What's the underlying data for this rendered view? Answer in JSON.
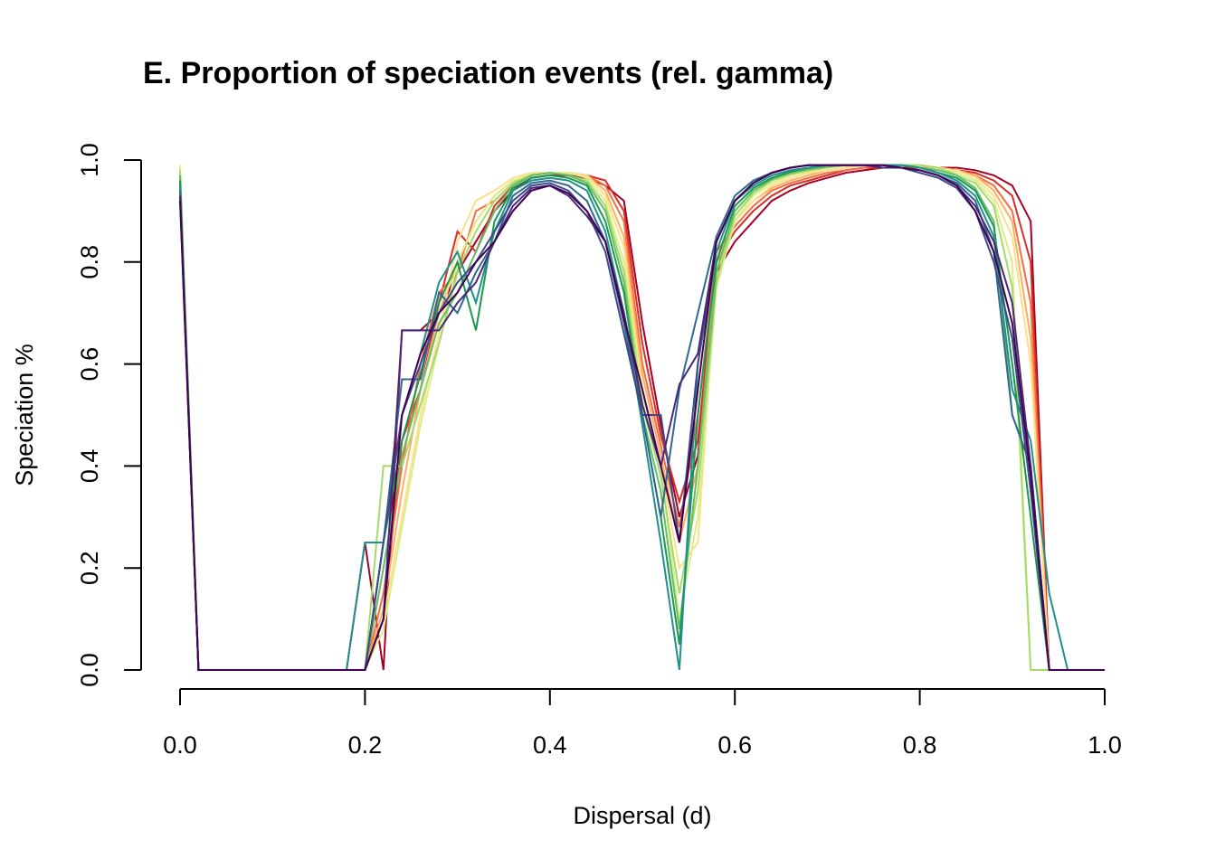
{
  "chart_data": {
    "type": "line",
    "title": "E. Proportion of speciation events (rel. gamma)",
    "xlabel": "Dispersal (d)",
    "ylabel": "Speciation %",
    "xlim": [
      0,
      1
    ],
    "ylim": [
      0,
      1
    ],
    "x_ticks": [
      "0.0",
      "0.2",
      "0.4",
      "0.6",
      "0.8",
      "1.0"
    ],
    "y_ticks": [
      "0.0",
      "0.2",
      "0.4",
      "0.6",
      "0.8",
      "1.0"
    ],
    "grid": false,
    "legend": "none",
    "palette": [
      "#A50026",
      "#D73027",
      "#F46D43",
      "#FDAE61",
      "#FEE08B",
      "#D9EF8B",
      "#A6D96A",
      "#66BD63",
      "#1A9850",
      "#21908C",
      "#31688E",
      "#3E4A89",
      "#482878",
      "#440154"
    ],
    "x": [
      0.0,
      0.02,
      0.04,
      0.06,
      0.08,
      0.1,
      0.12,
      0.14,
      0.16,
      0.18,
      0.2,
      0.22,
      0.24,
      0.26,
      0.28,
      0.3,
      0.32,
      0.34,
      0.36,
      0.38,
      0.4,
      0.42,
      0.44,
      0.46,
      0.48,
      0.5,
      0.52,
      0.54,
      0.56,
      0.58,
      0.6,
      0.62,
      0.64,
      0.66,
      0.68,
      0.7,
      0.72,
      0.74,
      0.76,
      0.78,
      0.8,
      0.82,
      0.84,
      0.86,
      0.88,
      0.9,
      0.92,
      0.94,
      0.96,
      0.98,
      1.0
    ],
    "series": [
      {
        "color": "#A50026",
        "values": [
          0.95,
          0,
          0,
          0,
          0,
          0,
          0,
          0,
          0,
          0,
          0.25,
          0,
          0.666,
          0.666,
          0.7,
          0.78,
          0.84,
          0.9,
          0.94,
          0.965,
          0.97,
          0.97,
          0.965,
          0.95,
          0.92,
          0.68,
          0.48,
          0.3,
          0.42,
          0.78,
          0.84,
          0.88,
          0.92,
          0.94,
          0.955,
          0.965,
          0.975,
          0.98,
          0.985,
          0.985,
          0.985,
          0.985,
          0.985,
          0.98,
          0.97,
          0.95,
          0.88,
          0,
          0,
          0,
          0
        ]
      },
      {
        "color": "#D73027",
        "values": [
          0.96,
          0,
          0,
          0,
          0,
          0,
          0,
          0,
          0,
          0,
          0,
          0.1,
          0.45,
          0.55,
          0.72,
          0.86,
          0.82,
          0.91,
          0.95,
          0.97,
          0.975,
          0.975,
          0.97,
          0.96,
          0.9,
          0.64,
          0.46,
          0.33,
          0.45,
          0.8,
          0.86,
          0.9,
          0.93,
          0.95,
          0.96,
          0.97,
          0.98,
          0.985,
          0.985,
          0.985,
          0.985,
          0.985,
          0.98,
          0.975,
          0.96,
          0.93,
          0.8,
          0,
          0,
          0,
          0
        ]
      },
      {
        "color": "#F46D43",
        "values": [
          0.97,
          0,
          0,
          0,
          0,
          0,
          0,
          0,
          0,
          0,
          0,
          0.15,
          0.4,
          0.6,
          0.74,
          0.78,
          0.9,
          0.92,
          0.955,
          0.972,
          0.975,
          0.975,
          0.97,
          0.95,
          0.88,
          0.6,
          0.44,
          0.28,
          0.5,
          0.82,
          0.87,
          0.91,
          0.94,
          0.955,
          0.965,
          0.975,
          0.98,
          0.985,
          0.99,
          0.99,
          0.985,
          0.985,
          0.98,
          0.97,
          0.95,
          0.9,
          0.72,
          0,
          0,
          0,
          0
        ]
      },
      {
        "color": "#FDAE61",
        "values": [
          0.98,
          0,
          0,
          0,
          0,
          0,
          0,
          0,
          0,
          0,
          0,
          0.12,
          0.35,
          0.55,
          0.7,
          0.8,
          0.88,
          0.93,
          0.96,
          0.972,
          0.975,
          0.975,
          0.97,
          0.94,
          0.85,
          0.58,
          0.42,
          0.25,
          0.4,
          0.8,
          0.88,
          0.92,
          0.945,
          0.96,
          0.97,
          0.98,
          0.985,
          0.99,
          0.99,
          0.99,
          0.985,
          0.985,
          0.98,
          0.97,
          0.94,
          0.88,
          0.65,
          0,
          0,
          0,
          0
        ]
      },
      {
        "color": "#FEE08B",
        "values": [
          0.99,
          0,
          0,
          0,
          0,
          0,
          0,
          0,
          0,
          0,
          0,
          0.1,
          0.3,
          0.5,
          0.66,
          0.84,
          0.92,
          0.94,
          0.965,
          0.975,
          0.975,
          0.975,
          0.97,
          0.93,
          0.83,
          0.55,
          0.4,
          0.2,
          0.25,
          0.78,
          0.88,
          0.92,
          0.95,
          0.965,
          0.975,
          0.98,
          0.985,
          0.99,
          0.99,
          0.99,
          0.99,
          0.985,
          0.98,
          0.965,
          0.93,
          0.85,
          0.6,
          0,
          0,
          0,
          0
        ]
      },
      {
        "color": "#D9EF8B",
        "values": [
          0.99,
          0,
          0,
          0,
          0,
          0,
          0,
          0,
          0,
          0,
          0,
          0.08,
          0.28,
          0.48,
          0.64,
          0.8,
          0.88,
          0.93,
          0.96,
          0.972,
          0.975,
          0.975,
          0.965,
          0.92,
          0.8,
          0.54,
          0.4,
          0.1,
          0.3,
          0.75,
          0.88,
          0.93,
          0.955,
          0.97,
          0.978,
          0.985,
          0.99,
          0.99,
          0.99,
          0.99,
          0.99,
          0.985,
          0.975,
          0.96,
          0.92,
          0.8,
          0,
          0,
          0,
          0,
          0
        ]
      },
      {
        "color": "#A6D96A",
        "values": [
          0.98,
          0,
          0,
          0,
          0,
          0,
          0,
          0,
          0,
          0,
          0,
          0.4,
          0.4,
          0.52,
          0.64,
          0.78,
          0.86,
          0.92,
          0.955,
          0.97,
          0.975,
          0.97,
          0.96,
          0.91,
          0.78,
          0.52,
          0.38,
          0.15,
          0.35,
          0.76,
          0.89,
          0.935,
          0.96,
          0.972,
          0.98,
          0.985,
          0.99,
          0.99,
          0.99,
          0.99,
          0.99,
          0.985,
          0.97,
          0.955,
          0.91,
          0.75,
          0,
          0,
          0,
          0,
          0
        ]
      },
      {
        "color": "#66BD63",
        "values": [
          0.97,
          0,
          0,
          0,
          0,
          0,
          0,
          0,
          0,
          0,
          0,
          0.2,
          0.42,
          0.55,
          0.68,
          0.74,
          0.82,
          0.9,
          0.95,
          0.97,
          0.975,
          0.97,
          0.955,
          0.9,
          0.76,
          0.5,
          0.35,
          0.08,
          0.4,
          0.78,
          0.9,
          0.94,
          0.962,
          0.975,
          0.982,
          0.987,
          0.99,
          0.99,
          0.99,
          0.99,
          0.985,
          0.98,
          0.97,
          0.945,
          0.88,
          0.5,
          0.4,
          0,
          0,
          0,
          0
        ]
      },
      {
        "color": "#1A9850",
        "values": [
          0.96,
          0,
          0,
          0,
          0,
          0,
          0,
          0,
          0,
          0,
          0,
          0.25,
          0.45,
          0.58,
          0.72,
          0.8,
          0.666,
          0.88,
          0.945,
          0.965,
          0.97,
          0.965,
          0.95,
          0.88,
          0.74,
          0.5,
          0.3,
          0.05,
          0.5,
          0.8,
          0.91,
          0.945,
          0.965,
          0.977,
          0.985,
          0.99,
          0.99,
          0.99,
          0.99,
          0.99,
          0.985,
          0.975,
          0.965,
          0.94,
          0.87,
          0.6,
          0.3,
          0,
          0,
          0,
          0
        ]
      },
      {
        "color": "#21908C",
        "values": [
          0.95,
          0,
          0,
          0,
          0,
          0,
          0,
          0,
          0,
          0,
          0.25,
          0.25,
          0.5,
          0.62,
          0.76,
          0.82,
          0.72,
          0.86,
          0.94,
          0.96,
          0.965,
          0.96,
          0.94,
          0.86,
          0.7,
          0.48,
          0.25,
          0.0,
          0.6,
          0.82,
          0.92,
          0.95,
          0.97,
          0.98,
          0.985,
          0.99,
          0.99,
          0.99,
          0.99,
          0.99,
          0.985,
          0.975,
          0.96,
          0.93,
          0.85,
          0.55,
          0.45,
          0.15,
          0,
          0,
          0
        ]
      },
      {
        "color": "#31688E",
        "values": [
          0.94,
          0,
          0,
          0,
          0,
          0,
          0,
          0,
          0,
          0,
          0,
          0.25,
          0.57,
          0.57,
          0.74,
          0.7,
          0.78,
          0.84,
          0.93,
          0.955,
          0.96,
          0.95,
          0.92,
          0.84,
          0.68,
          0.5,
          0.3,
          0.55,
          0.7,
          0.85,
          0.93,
          0.96,
          0.975,
          0.985,
          0.99,
          0.99,
          0.99,
          0.99,
          0.99,
          0.985,
          0.98,
          0.97,
          0.955,
          0.92,
          0.82,
          0.5,
          0.4,
          0,
          0,
          0,
          0
        ]
      },
      {
        "color": "#3E4A89",
        "values": [
          0.93,
          0,
          0,
          0,
          0,
          0,
          0,
          0,
          0,
          0,
          0,
          0.25,
          0.5,
          0.6,
          0.7,
          0.76,
          0.8,
          0.86,
          0.92,
          0.95,
          0.955,
          0.94,
          0.9,
          0.82,
          0.66,
          0.5,
          0.5,
          0.25,
          0.6,
          0.84,
          0.92,
          0.955,
          0.975,
          0.985,
          0.99,
          0.99,
          0.99,
          0.99,
          0.99,
          0.985,
          0.975,
          0.965,
          0.945,
          0.9,
          0.8,
          0.65,
          0.35,
          0,
          0,
          0,
          0
        ]
      },
      {
        "color": "#482878",
        "values": [
          0.93,
          0,
          0,
          0,
          0,
          0,
          0,
          0,
          0,
          0,
          0,
          0.1,
          0.666,
          0.666,
          0.666,
          0.72,
          0.76,
          0.84,
          0.91,
          0.945,
          0.95,
          0.93,
          0.89,
          0.84,
          0.7,
          0.52,
          0.4,
          0.56,
          0.62,
          0.84,
          0.92,
          0.955,
          0.975,
          0.985,
          0.99,
          0.99,
          0.99,
          0.99,
          0.985,
          0.985,
          0.98,
          0.97,
          0.95,
          0.91,
          0.84,
          0.72,
          0.4,
          0,
          0,
          0,
          0
        ]
      },
      {
        "color": "#440154",
        "values": [
          0.92,
          0,
          0,
          0,
          0,
          0,
          0,
          0,
          0,
          0,
          0,
          0.1,
          0.5,
          0.62,
          0.7,
          0.74,
          0.8,
          0.84,
          0.9,
          0.94,
          0.95,
          0.935,
          0.9,
          0.84,
          0.69,
          0.55,
          0.4,
          0.25,
          0.55,
          0.84,
          0.92,
          0.955,
          0.975,
          0.985,
          0.99,
          0.99,
          0.99,
          0.99,
          0.99,
          0.985,
          0.98,
          0.97,
          0.95,
          0.9,
          0.82,
          0.68,
          0.38,
          0,
          0,
          0,
          0
        ]
      }
    ]
  }
}
